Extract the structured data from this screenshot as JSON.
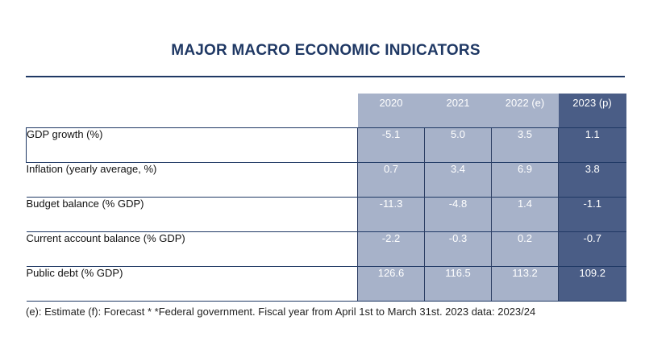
{
  "title": "MAJOR MACRO ECONOMIC INDICATORS",
  "columns": [
    "2020",
    "2021",
    "2022 (e)",
    "2023 (p)"
  ],
  "rows": [
    {
      "label": "GDP growth (%)",
      "values": [
        "-5.1",
        "5.0",
        "3.5",
        "1.1"
      ]
    },
    {
      "label": "Inflation (yearly average, %)",
      "values": [
        "0.7",
        "3.4",
        "6.9",
        "3.8"
      ]
    },
    {
      "label": "Budget balance (% GDP)",
      "values": [
        "-11.3",
        "-4.8",
        "1.4",
        "-1.1"
      ]
    },
    {
      "label": "Current account balance (% GDP)",
      "values": [
        "-2.2",
        "-0.3",
        "0.2",
        "-0.7"
      ]
    },
    {
      "label": "Public debt (% GDP)",
      "values": [
        "126.6",
        "116.5",
        "113.2",
        "109.2"
      ]
    }
  ],
  "footnote": "(e): Estimate (f): Forecast * *Federal government. Fiscal year from April 1st to March 31st. 2023 data: 2023/24",
  "colors": {
    "title": "#1f3864",
    "year_columns": "#a7b2c9",
    "highlight_column": "#4a5d86"
  }
}
